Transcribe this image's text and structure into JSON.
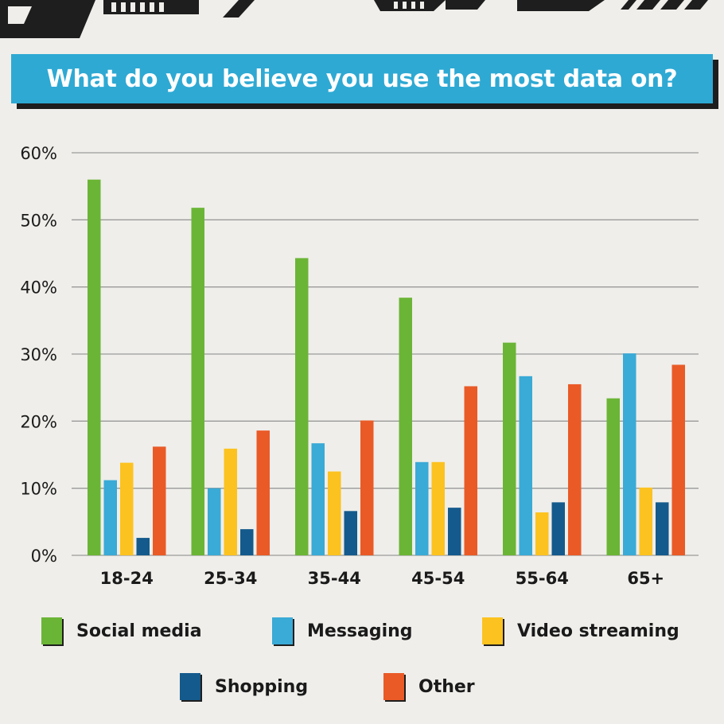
{
  "title": "What do you believe you use the most data on?",
  "chart_data": {
    "type": "bar",
    "categories": [
      "18-24",
      "25-34",
      "35-44",
      "45-54",
      "55-64",
      "65+"
    ],
    "series": [
      {
        "name": "Social media",
        "color": "#6bb536",
        "values": [
          56,
          51.8,
          44.3,
          38.4,
          31.7,
          23.4
        ]
      },
      {
        "name": "Messaging",
        "color": "#3aaad6",
        "values": [
          11.2,
          10.0,
          16.7,
          13.9,
          26.7,
          30.1
        ]
      },
      {
        "name": "Video streaming",
        "color": "#fcc21f",
        "values": [
          13.8,
          15.9,
          12.5,
          13.9,
          6.4,
          10.1
        ]
      },
      {
        "name": "Shopping",
        "color": "#145a8c",
        "values": [
          2.6,
          3.9,
          6.6,
          7.1,
          7.9,
          7.9
        ]
      },
      {
        "name": "Other",
        "color": "#ea5a27",
        "values": [
          16.2,
          18.6,
          20.1,
          25.2,
          25.5,
          28.4
        ]
      }
    ],
    "ylim": [
      0,
      60
    ],
    "yticks": [
      "0%",
      "10%",
      "20%",
      "30%",
      "40%",
      "50%",
      "60%"
    ],
    "grid": true,
    "legend_position": "bottom"
  }
}
